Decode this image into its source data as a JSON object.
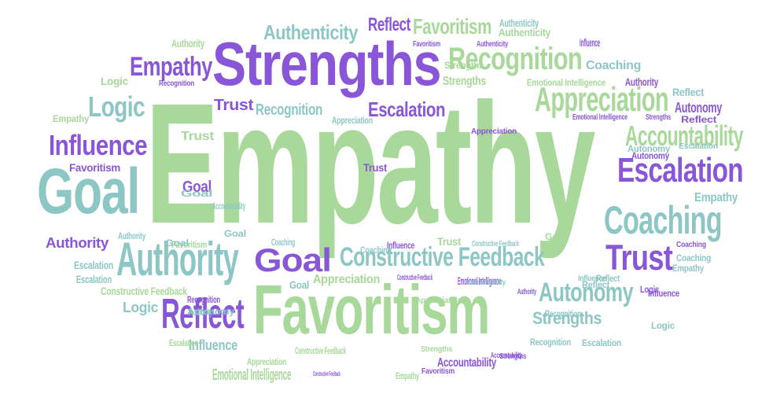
{
  "colors": {
    "green": "#a8d89a",
    "teal": "#8cc7c5",
    "purple": "#8a56d8"
  },
  "words": [
    {
      "text": "Empathy",
      "color": "green"
    },
    {
      "text": "Strengths",
      "color": "purple"
    },
    {
      "text": "Favoritism",
      "color": "green"
    },
    {
      "text": "Goal",
      "color": "teal"
    },
    {
      "text": "Recognition",
      "color": "green"
    },
    {
      "text": "Appreciation",
      "color": "green"
    },
    {
      "text": "Escalation",
      "color": "purple"
    },
    {
      "text": "Coaching",
      "color": "teal"
    },
    {
      "text": "Authority",
      "color": "teal"
    },
    {
      "text": "Constructive Feedback",
      "color": "teal"
    },
    {
      "text": "Influence",
      "color": "purple"
    },
    {
      "text": "Logic",
      "color": "teal"
    },
    {
      "text": "Reflect",
      "color": "purple"
    },
    {
      "text": "Trust",
      "color": "purple"
    },
    {
      "text": "Goal",
      "color": "purple"
    },
    {
      "text": "Accountability",
      "color": "green"
    },
    {
      "text": "Autonomy",
      "color": "teal"
    },
    {
      "text": "Empathy",
      "color": "purple"
    },
    {
      "text": "Authenticity",
      "color": "teal"
    },
    {
      "text": "Favoritism",
      "color": "green"
    },
    {
      "text": "Reflect",
      "color": "purple"
    },
    {
      "text": "Strengths",
      "color": "green"
    },
    {
      "text": "Emotional Intelligence",
      "color": "green"
    },
    {
      "text": "Trust",
      "color": "purple"
    },
    {
      "text": "Recognition",
      "color": "teal"
    },
    {
      "text": "Escalation",
      "color": "purple"
    },
    {
      "text": "Appreciation",
      "color": "green"
    },
    {
      "text": "Strengths",
      "color": "teal"
    },
    {
      "text": "Coaching",
      "color": "teal"
    },
    {
      "text": "Empathy",
      "color": "teal"
    },
    {
      "text": "Authority",
      "color": "purple"
    },
    {
      "text": "Logic",
      "color": "green"
    },
    {
      "text": "Reflect",
      "color": "teal"
    },
    {
      "text": "Autonomy",
      "color": "purple"
    },
    {
      "text": "Influence",
      "color": "teal"
    },
    {
      "text": "Authority",
      "color": "green"
    },
    {
      "text": "Favoritism",
      "color": "purple"
    },
    {
      "text": "Goal",
      "color": "purple"
    },
    {
      "text": "Trust",
      "color": "green"
    },
    {
      "text": "Recognition",
      "color": "teal"
    },
    {
      "text": "Autonomy",
      "color": "teal"
    },
    {
      "text": "Goal",
      "color": "teal"
    },
    {
      "text": "Authenticity",
      "color": "green"
    },
    {
      "text": "Influence",
      "color": "purple"
    },
    {
      "text": "Coaching",
      "color": "teal"
    },
    {
      "text": "Reflect",
      "color": "purple"
    },
    {
      "text": "Strengths",
      "color": "purple"
    },
    {
      "text": "Accountability",
      "color": "purple"
    },
    {
      "text": "Constructive Feedback",
      "color": "green"
    },
    {
      "text": "Escalation",
      "color": "teal"
    },
    {
      "text": "Escalation",
      "color": "teal"
    },
    {
      "text": "Logic",
      "color": "teal"
    },
    {
      "text": "Empathy",
      "color": "teal"
    },
    {
      "text": "Empathy",
      "color": "green"
    },
    {
      "text": "Goal",
      "color": "green"
    },
    {
      "text": "Goal",
      "color": "teal"
    },
    {
      "text": "Trust",
      "color": "purple"
    },
    {
      "text": "Trust",
      "color": "green"
    },
    {
      "text": "Authority",
      "color": "purple"
    },
    {
      "text": "Authenticity",
      "color": "teal"
    },
    {
      "text": "Authenticity",
      "color": "purple"
    },
    {
      "text": "Strengths",
      "color": "green"
    },
    {
      "text": "Influence",
      "color": "purple"
    },
    {
      "text": "Favoritism",
      "color": "green"
    },
    {
      "text": "Favoritism",
      "color": "purple"
    },
    {
      "text": "Favoritism",
      "color": "purple"
    },
    {
      "text": "Appreciation",
      "color": "green"
    },
    {
      "text": "Appreciation",
      "color": "teal"
    },
    {
      "text": "Appreciation",
      "color": "purple"
    },
    {
      "text": "Appreciation",
      "color": "green"
    },
    {
      "text": "Recognition",
      "color": "purple"
    },
    {
      "text": "Recognition",
      "color": "purple"
    },
    {
      "text": "Recognition",
      "color": "teal"
    },
    {
      "text": "Coaching",
      "color": "teal"
    },
    {
      "text": "Coaching",
      "color": "teal"
    },
    {
      "text": "Coaching",
      "color": "purple"
    },
    {
      "text": "Influence",
      "color": "teal"
    },
    {
      "text": "Influence",
      "color": "purple"
    },
    {
      "text": "Constructive Feedback",
      "color": "green"
    },
    {
      "text": "Constructive Feedback",
      "color": "purple"
    },
    {
      "text": "Constructive Feedback",
      "color": "purple"
    },
    {
      "text": "Constructive Feedback",
      "color": "teal"
    },
    {
      "text": "Emotional Intelligence",
      "color": "purple"
    },
    {
      "text": "Emotional Intelligence",
      "color": "purple"
    },
    {
      "text": "Emotional Intelligence",
      "color": "green"
    },
    {
      "text": "Accountability",
      "color": "teal"
    },
    {
      "text": "Accountability",
      "color": "purple"
    },
    {
      "text": "Accountability",
      "color": "teal"
    },
    {
      "text": "Autonomy",
      "color": "teal"
    },
    {
      "text": "Autonomy",
      "color": "purple"
    },
    {
      "text": "Authority",
      "color": "purple"
    },
    {
      "text": "Authority",
      "color": "teal"
    },
    {
      "text": "Authority",
      "color": "teal"
    },
    {
      "text": "Reflect",
      "color": "teal"
    },
    {
      "text": "Reflect",
      "color": "teal"
    },
    {
      "text": "Escalation",
      "color": "green"
    },
    {
      "text": "Escalation",
      "color": "teal"
    },
    {
      "text": "Escalation",
      "color": "teal"
    },
    {
      "text": "Strengths",
      "color": "purple"
    },
    {
      "text": "Strengths",
      "color": "green"
    },
    {
      "text": "Logic",
      "color": "teal"
    },
    {
      "text": "Logic",
      "color": "purple"
    },
    {
      "text": "Empathy",
      "color": "green"
    },
    {
      "text": "Goal",
      "color": "teal"
    },
    {
      "text": "Goal",
      "color": "teal"
    }
  ]
}
